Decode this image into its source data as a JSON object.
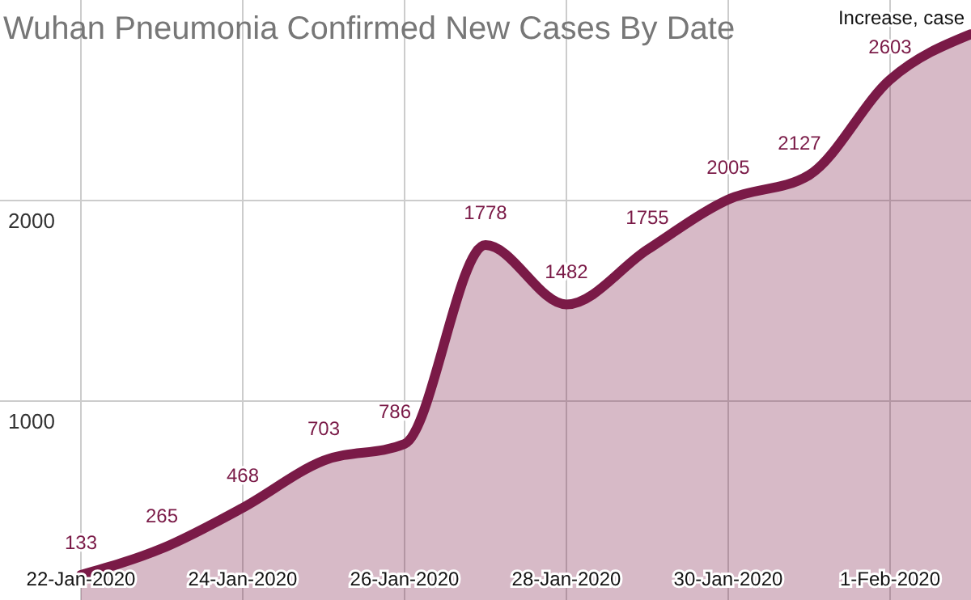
{
  "chart_data": {
    "type": "area",
    "title": "Wuhan Pneumonia Confirmed New Cases By Date",
    "ylabel": "Increase, case",
    "x": [
      "2020-01-22",
      "2020-01-23",
      "2020-01-24",
      "2020-01-25",
      "2020-01-26",
      "2020-01-27",
      "2020-01-28",
      "2020-01-29",
      "2020-01-30",
      "2020-01-31",
      "2020-02-01",
      "2020-02-02"
    ],
    "series": [
      {
        "color": "#7a1a47",
        "values": [
          133,
          265,
          468,
          703,
          786,
          1778,
          1482,
          1755,
          2005,
          2127,
          2603,
          2830
        ],
        "value_labels": [
          "133",
          "265",
          "468",
          "703",
          "786",
          "1778",
          "1482",
          "1755",
          "2005",
          "2127",
          "2603",
          null
        ]
      }
    ],
    "xlim": [
      "2020-01-21",
      "2020-02-02"
    ],
    "xticks": [
      {
        "value": "2020-01-22",
        "label": "22-Jan-2020"
      },
      {
        "value": "2020-01-24",
        "label": "24-Jan-2020"
      },
      {
        "value": "2020-01-26",
        "label": "26-Jan-2020"
      },
      {
        "value": "2020-01-28",
        "label": "28-Jan-2020"
      },
      {
        "value": "2020-01-30",
        "label": "30-Jan-2020"
      },
      {
        "value": "2020-02-01",
        "label": "1-Feb-2020"
      }
    ],
    "ylim": [
      0,
      3000
    ],
    "yticks": [
      1000,
      2000
    ],
    "grid": true
  }
}
